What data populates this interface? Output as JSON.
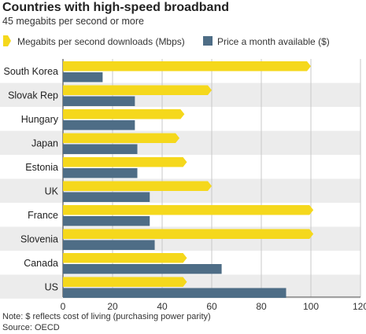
{
  "chart_data": {
    "type": "bar",
    "orientation": "horizontal",
    "title": "Countries with high-speed broadband",
    "subtitle": "45 megabits per second or more",
    "categories": [
      "South Korea",
      "Slovak Rep",
      "Hungary",
      "Japan",
      "Estonia",
      "UK",
      "France",
      "Slovenia",
      "Canada",
      "US"
    ],
    "series": [
      {
        "name": "Megabits per second downloads (Mbps)",
        "color": "#f5d81c",
        "marker": "arrow",
        "values": [
          100,
          60,
          49,
          47,
          50,
          60,
          101,
          101,
          50,
          50
        ]
      },
      {
        "name": "Price a month available ($)",
        "color": "#4e6d86",
        "marker": "rect",
        "values": [
          16,
          29,
          29,
          30,
          30,
          35,
          35,
          37,
          64,
          90
        ]
      }
    ],
    "xlim": [
      0,
      120
    ],
    "xticks": [
      0,
      20,
      40,
      60,
      80,
      100,
      120
    ],
    "grid": true,
    "legend_position": "top",
    "note": "Note: $ reflects cost of living (purchasing power parity)",
    "source": "Source: OECD"
  }
}
